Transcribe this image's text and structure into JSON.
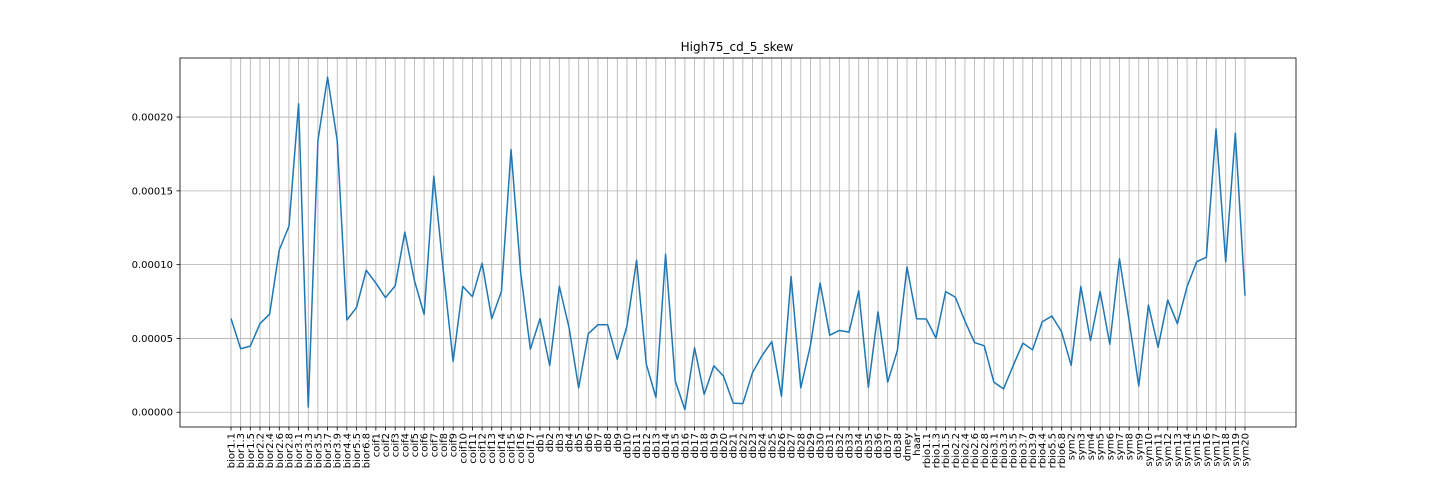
{
  "chart_data": {
    "type": "line",
    "title": "High75_cd_5_skew",
    "xlabel": "",
    "ylabel": "",
    "ylim": [
      -1e-05,
      0.00024
    ],
    "yticks": [
      "0.00000",
      "0.00005",
      "0.00010",
      "0.00015",
      "0.00020"
    ],
    "ytick_values": [
      0,
      5e-05,
      0.0001,
      0.00015,
      0.0002
    ],
    "grid": true,
    "categories": [
      "bior1.1",
      "bior1.3",
      "bior1.5",
      "bior2.2",
      "bior2.4",
      "bior2.6",
      "bior2.8",
      "bior3.1",
      "bior3.3",
      "bior3.5",
      "bior3.7",
      "bior3.9",
      "bior4.4",
      "bior5.5",
      "bior6.8",
      "coif1",
      "coif2",
      "coif3",
      "coif4",
      "coif5",
      "coif6",
      "coif7",
      "coif8",
      "coif9",
      "coif10",
      "coif11",
      "coif12",
      "coif13",
      "coif14",
      "coif15",
      "coif16",
      "coif17",
      "db1",
      "db2",
      "db3",
      "db4",
      "db5",
      "db6",
      "db7",
      "db8",
      "db9",
      "db10",
      "db11",
      "db12",
      "db13",
      "db14",
      "db15",
      "db16",
      "db17",
      "db18",
      "db19",
      "db20",
      "db21",
      "db22",
      "db23",
      "db24",
      "db25",
      "db26",
      "db27",
      "db28",
      "db29",
      "db30",
      "db31",
      "db32",
      "db33",
      "db34",
      "db35",
      "db36",
      "db37",
      "db38",
      "dmey",
      "haar",
      "rbio1.1",
      "rbio1.3",
      "rbio1.5",
      "rbio2.2",
      "rbio2.4",
      "rbio2.6",
      "rbio2.8",
      "rbio3.1",
      "rbio3.3",
      "rbio3.5",
      "rbio3.7",
      "rbio3.9",
      "rbio4.4",
      "rbio5.5",
      "rbio6.8",
      "sym2",
      "sym3",
      "sym4",
      "sym5",
      "sym6",
      "sym7",
      "sym8",
      "sym9",
      "sym10",
      "sym11",
      "sym12",
      "sym13",
      "sym14",
      "sym15",
      "sym16",
      "sym17",
      "sym18",
      "sym19",
      "sym20"
    ],
    "series": [
      {
        "color": "#1f77b4",
        "values": [
          6.35e-05,
          4.3e-05,
          4.48e-05,
          6e-05,
          6.65e-05,
          0.00011,
          0.000126,
          0.000209,
          3.5e-06,
          0.000184,
          0.000227,
          0.000184,
          6.25e-05,
          7.1e-05,
          9.62e-05,
          8.75e-05,
          7.76e-05,
          8.57e-05,
          0.000122,
          8.9e-05,
          6.63e-05,
          0.00016,
          9.5e-05,
          3.45e-05,
          8.53e-05,
          7.83e-05,
          0.000101,
          6.34e-05,
          8.18e-05,
          0.000178,
          9.42e-05,
          4.27e-05,
          6.34e-05,
          3.16e-05,
          8.53e-05,
          5.75e-05,
          1.65e-05,
          5.32e-05,
          5.93e-05,
          5.93e-05,
          3.58e-05,
          5.84e-05,
          0.000103,
          3.27e-05,
          1e-05,
          0.000107,
          2.12e-05,
          1.8e-06,
          4.37e-05,
          1.21e-05,
          3.15e-05,
          2.45e-05,
          6.2e-06,
          5.8e-06,
          2.68e-05,
          3.85e-05,
          4.78e-05,
          1.08e-05,
          9.2e-05,
          1.65e-05,
          4.52e-05,
          8.76e-05,
          5.22e-05,
          5.54e-05,
          5.43e-05,
          8.23e-05,
          1.69e-05,
          6.8e-05,
          2.04e-05,
          4.18e-05,
          9.84e-05,
          6.33e-05,
          6.32e-05,
          5.02e-05,
          8.17e-05,
          7.8e-05,
          6.17e-05,
          4.72e-05,
          4.5e-05,
          2.03e-05,
          1.58e-05,
          3.17e-05,
          4.68e-05,
          4.23e-05,
          6.12e-05,
          6.52e-05,
          5.46e-05,
          3.18e-05,
          8.52e-05,
          4.85e-05,
          8.18e-05,
          4.61e-05,
          0.000104,
          6.21e-05,
          1.78e-05,
          7.26e-05,
          4.4e-05,
          7.6e-05,
          6e-05,
          8.5e-05,
          0.000102,
          0.000105,
          0.000192,
          0.000102,
          0.000189,
          7.9e-05
        ]
      }
    ]
  }
}
